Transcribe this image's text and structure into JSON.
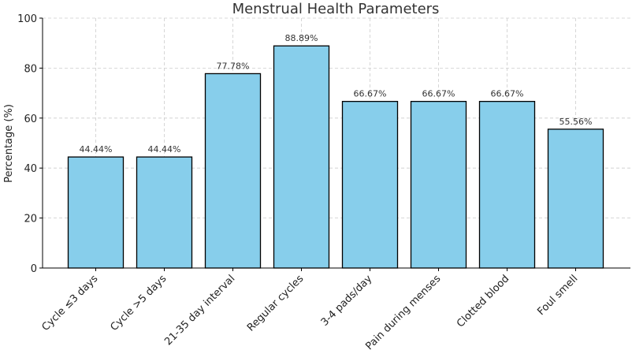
{
  "chart_data": {
    "type": "bar",
    "title": "Menstrual Health Parameters",
    "xlabel": "",
    "ylabel": "Percentage (%)",
    "ylim": [
      0,
      100
    ],
    "yticks": [
      "0",
      "20",
      "40",
      "60",
      "80",
      "100"
    ],
    "grid": true,
    "bar_color": "#87CEEB",
    "edge_color": "#000000",
    "categories": [
      "Cycle ≤3 days",
      "Cycle >5 days",
      "21-35 day interval",
      "Regular cycles",
      "3-4 pads/day",
      "Pain during menses",
      "Clotted blood",
      "Foul smell"
    ],
    "values": [
      44.44,
      44.44,
      77.78,
      88.89,
      66.67,
      66.67,
      66.67,
      55.56
    ],
    "data_labels": [
      "44.44%",
      "44.44%",
      "77.78%",
      "88.89%",
      "66.67%",
      "66.67%",
      "66.67%",
      "55.56%"
    ]
  }
}
